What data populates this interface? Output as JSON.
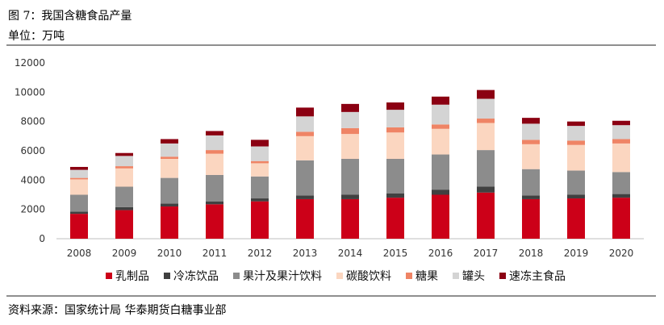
{
  "header": {
    "title": "图 7：我国含糖食品产量",
    "unit": "单位：万吨"
  },
  "footer": {
    "source": "资料来源：国家统计局 华泰期货白糖事业部"
  },
  "chart_data": {
    "type": "bar",
    "stacked": true,
    "categories": [
      "2008",
      "2009",
      "2010",
      "2011",
      "2012",
      "2013",
      "2014",
      "2015",
      "2016",
      "2017",
      "2018",
      "2019",
      "2020"
    ],
    "ylim": [
      0,
      12000
    ],
    "yticks": [
      0,
      2000,
      4000,
      6000,
      8000,
      10000,
      12000
    ],
    "grid": false,
    "legend_position": "bottom",
    "series": [
      {
        "name": "乳制品",
        "color": "#cc0018",
        "values": [
          1700,
          1950,
          2200,
          2350,
          2550,
          2700,
          2700,
          2800,
          3000,
          3150,
          2700,
          2750,
          2800
        ]
      },
      {
        "name": "冷冻饮品",
        "color": "#404040",
        "values": [
          150,
          200,
          200,
          200,
          200,
          250,
          300,
          300,
          350,
          400,
          250,
          250,
          250
        ]
      },
      {
        "name": "果汁及果汁饮料",
        "color": "#8c8c8c",
        "values": [
          1150,
          1400,
          1750,
          1800,
          1500,
          2400,
          2450,
          2350,
          2400,
          2500,
          1800,
          1650,
          1500
        ]
      },
      {
        "name": "碳酸饮料",
        "color": "#fbd6c0",
        "values": [
          1050,
          1250,
          1300,
          1450,
          900,
          1650,
          1700,
          1800,
          1750,
          1850,
          1700,
          1750,
          1950
        ]
      },
      {
        "name": "糖果",
        "color": "#ef8465",
        "values": [
          100,
          150,
          150,
          250,
          150,
          300,
          400,
          350,
          300,
          300,
          300,
          300,
          300
        ]
      },
      {
        "name": "罐头",
        "color": "#d4d4d4",
        "values": [
          550,
          700,
          900,
          1000,
          1000,
          1050,
          1100,
          1200,
          1350,
          1350,
          1100,
          1000,
          950
        ]
      },
      {
        "name": "速冻主食品",
        "color": "#8b0012",
        "values": [
          200,
          200,
          300,
          300,
          450,
          600,
          550,
          500,
          550,
          600,
          400,
          300,
          300
        ]
      }
    ]
  }
}
